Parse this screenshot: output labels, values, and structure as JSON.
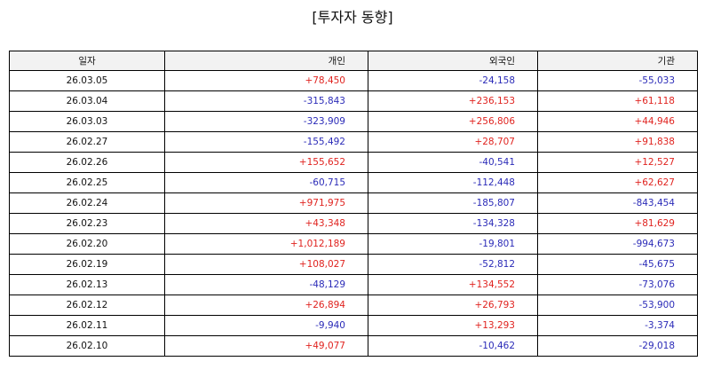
{
  "title": "[투자자 동향]",
  "colors": {
    "positive": "#e0231f",
    "negative": "#2b2bb8"
  },
  "headers": [
    "일자",
    "개인",
    "외국인",
    "기관"
  ],
  "rows": [
    [
      "26.03.05",
      "+78,450",
      "-24,158",
      "-55,033"
    ],
    [
      "26.03.04",
      "-315,843",
      "+236,153",
      "+61,118"
    ],
    [
      "26.03.03",
      "-323,909",
      "+256,806",
      "+44,946"
    ],
    [
      "26.02.27",
      "-155,492",
      "+28,707",
      "+91,838"
    ],
    [
      "26.02.26",
      "+155,652",
      "-40,541",
      "+12,527"
    ],
    [
      "26.02.25",
      "-60,715",
      "-112,448",
      "+62,627"
    ],
    [
      "26.02.24",
      "+971,975",
      "-185,807",
      "-843,454"
    ],
    [
      "26.02.23",
      "+43,348",
      "-134,328",
      "+81,629"
    ],
    [
      "26.02.20",
      "+1,012,189",
      "-19,801",
      "-994,673"
    ],
    [
      "26.02.19",
      "+108,027",
      "-52,812",
      "-45,675"
    ],
    [
      "26.02.13",
      "-48,129",
      "+134,552",
      "-73,076"
    ],
    [
      "26.02.12",
      "+26,894",
      "+26,793",
      "-53,900"
    ],
    [
      "26.02.11",
      "-9,940",
      "+13,293",
      "-3,374"
    ],
    [
      "26.02.10",
      "+49,077",
      "-10,462",
      "-29,018"
    ]
  ]
}
